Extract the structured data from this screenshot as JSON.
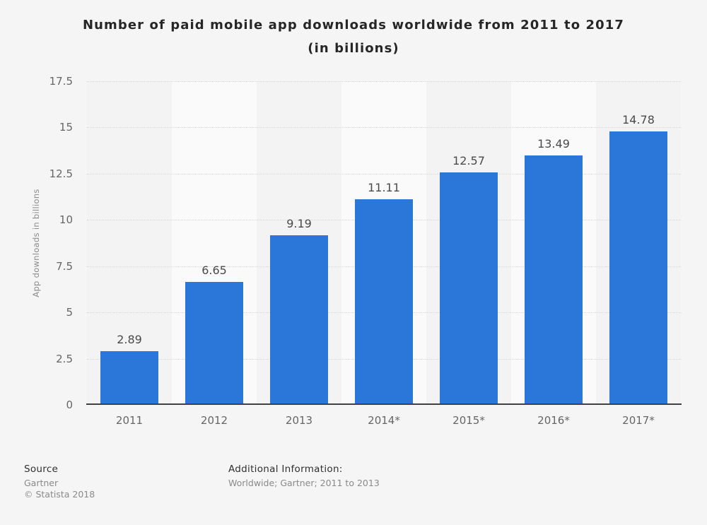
{
  "title": {
    "line1": "Number of paid mobile app downloads worldwide from 2011 to 2017",
    "line2": "(in billions)"
  },
  "chart_data": {
    "type": "bar",
    "title": "Number of paid mobile app downloads worldwide from 2011 to 2017 (in billions)",
    "categories": [
      "2011",
      "2012",
      "2013",
      "2014*",
      "2015*",
      "2016*",
      "2017*"
    ],
    "values": [
      2.89,
      6.65,
      9.19,
      11.11,
      12.57,
      13.49,
      14.78
    ],
    "value_labels": [
      "2.89",
      "6.65",
      "9.19",
      "11.11",
      "12.57",
      "13.49",
      "14.78"
    ],
    "xlabel": "",
    "ylabel": "App downloads in billions",
    "ylim": [
      0,
      17.5
    ],
    "yticks": [
      0,
      2.5,
      5,
      7.5,
      10,
      12.5,
      15,
      17.5
    ],
    "grid": "horizontal-dotted",
    "legend": "none",
    "bar_color": "#2b76d9",
    "band_colors": [
      "#f3f3f3",
      "#fafafa"
    ]
  },
  "footer": {
    "source_label": "Source",
    "source_value": "Gartner",
    "copyright": "© Statista 2018",
    "additional_info_label": "Additional Information:",
    "additional_info_value": "Worldwide; Gartner; 2011 to 2013"
  }
}
